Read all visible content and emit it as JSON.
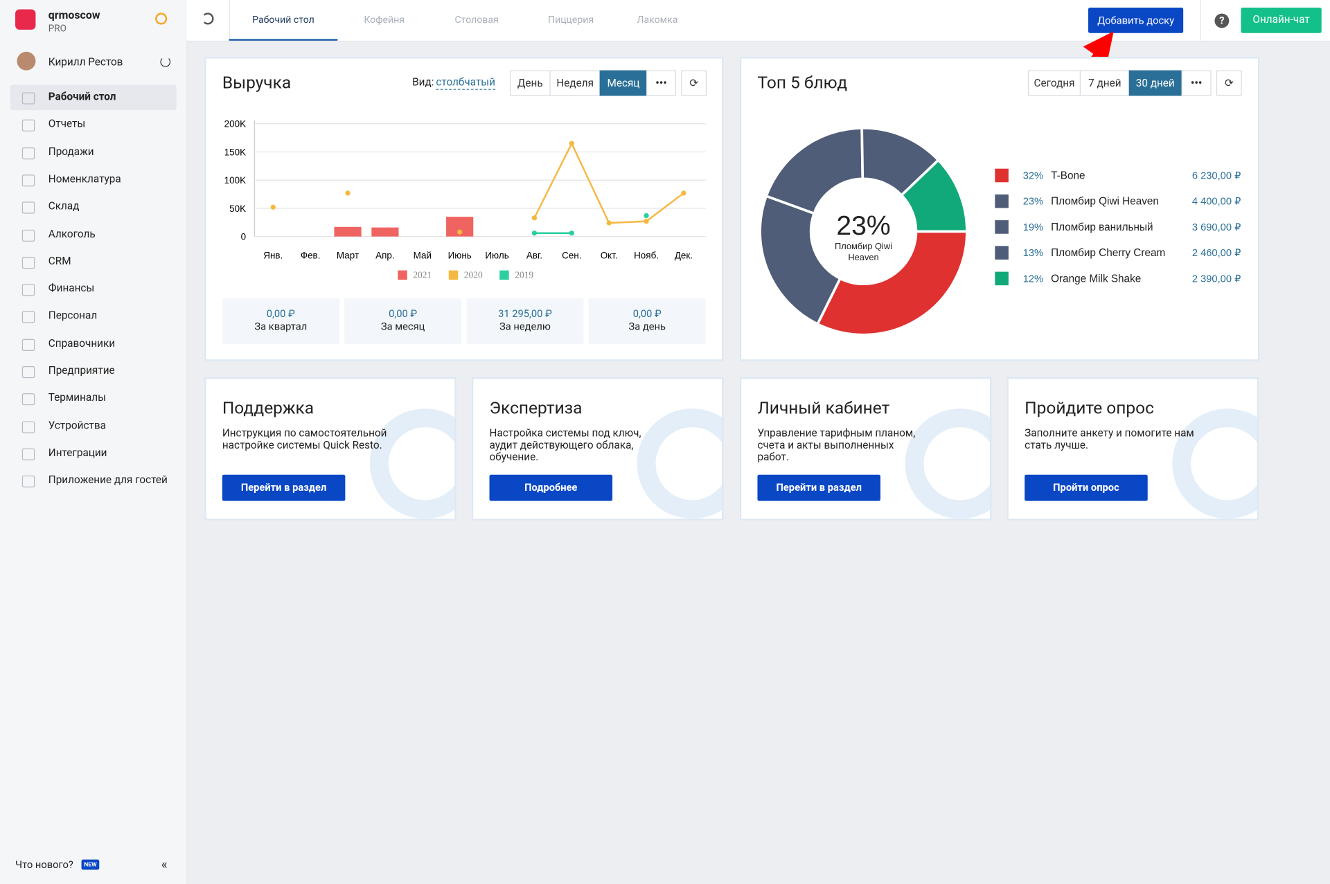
{
  "sidebar": {
    "brand": "qrmoscow",
    "plan": "PRO",
    "user": "Кирилл Рестов",
    "menu": [
      "Рабочий стол",
      "Отчеты",
      "Продажи",
      "Номенклатура",
      "Склад",
      "Алкоголь",
      "CRM",
      "Финансы",
      "Персонал",
      "Справочники",
      "Предприятие",
      "Терминалы",
      "Устройства",
      "Интеграции",
      "Приложение для гостей"
    ],
    "whats_new": "Что нового?",
    "new_badge": "NEW"
  },
  "topbar": {
    "tabs": [
      "Рабочий стол",
      "Кофейня",
      "Столовая",
      "Пиццерия",
      "Лакомка"
    ],
    "add_board": "Добавить доску",
    "chat": "Онлайн-чат"
  },
  "revenue": {
    "title": "Выручка",
    "view_label": "Вид:",
    "view_value": "столбчатый",
    "periods": [
      "День",
      "Неделя",
      "Месяц"
    ],
    "chart_data": {
      "type": "bar",
      "categories": [
        "Янв.",
        "Фев.",
        "Март",
        "Апр.",
        "Май",
        "Июнь",
        "Июль",
        "Авг.",
        "Сен.",
        "Окт.",
        "Нояб.",
        "Дек."
      ],
      "series": [
        {
          "name": "2021",
          "color": "#ef6461",
          "type": "bar",
          "values": [
            null,
            null,
            17000,
            16000,
            null,
            35000,
            null,
            null,
            null,
            null,
            null,
            null
          ]
        },
        {
          "name": "2020",
          "color": "#f5b841",
          "type": "line",
          "values": [
            52000,
            null,
            77000,
            null,
            null,
            8000,
            null,
            33000,
            165000,
            24000,
            27000,
            77000
          ]
        },
        {
          "name": "2019",
          "color": "#2ccfa0",
          "type": "line",
          "values": [
            null,
            null,
            null,
            null,
            null,
            null,
            null,
            6000,
            6000,
            null,
            37000,
            null
          ]
        }
      ],
      "ylim": [
        0,
        200000
      ],
      "yticks": [
        0,
        {
          "value": 50000,
          "label": "50K"
        },
        {
          "value": 100000,
          "label": "100K"
        },
        {
          "value": 150000,
          "label": "150K"
        },
        {
          "value": 200000,
          "label": "200K"
        }
      ],
      "grid": true
    },
    "stats": [
      {
        "value": "0,00 ₽",
        "label": "За квартал"
      },
      {
        "value": "0,00 ₽",
        "label": "За месяц"
      },
      {
        "value": "31 295,00 ₽",
        "label": "За неделю"
      },
      {
        "value": "0,00 ₽",
        "label": "За день"
      }
    ]
  },
  "top5": {
    "title": "Топ 5 блюд",
    "periods": [
      "Сегодня",
      "7 дней",
      "30 дней"
    ],
    "chart_data": {
      "type": "pie",
      "center_value": "23%",
      "center_label": "Пломбир Qiwi Heaven",
      "categories": [
        "T-Bone",
        "Пломбир Qiwi Heaven",
        "Пломбир ванильный",
        "Пломбир Cherry Cream",
        "Orange Milk Shake"
      ],
      "values": [
        32,
        23,
        19,
        13,
        12
      ],
      "value_labels": [
        "32%",
        "23%",
        "19%",
        "13%",
        "12%"
      ],
      "amounts": [
        "6 230,00 ₽",
        "4 400,00 ₽",
        "3 690,00 ₽",
        "2 460,00 ₽",
        "2 390,00 ₽"
      ],
      "colors": [
        "#e03131",
        "#4f5d78",
        "#4f5d78",
        "#4f5d78",
        "#12a97a"
      ]
    }
  },
  "cards": [
    {
      "title": "Поддержка",
      "text": "Инструкция по самостоятельной настройке системы Quick Resto.",
      "button": "Перейти в раздел"
    },
    {
      "title": "Экспертиза",
      "text": "Настройка системы под ключ, аудит действующего облака, обучение.",
      "button": "Подробнее"
    },
    {
      "title": "Личный кабинет",
      "text": "Управление тарифным планом, счета и акты выполненных работ.",
      "button": "Перейти в раздел"
    },
    {
      "title": "Пройдите опрос",
      "text": "Заполните анкету и помогите нам стать лучше.",
      "button": "Пройти опрос"
    }
  ]
}
